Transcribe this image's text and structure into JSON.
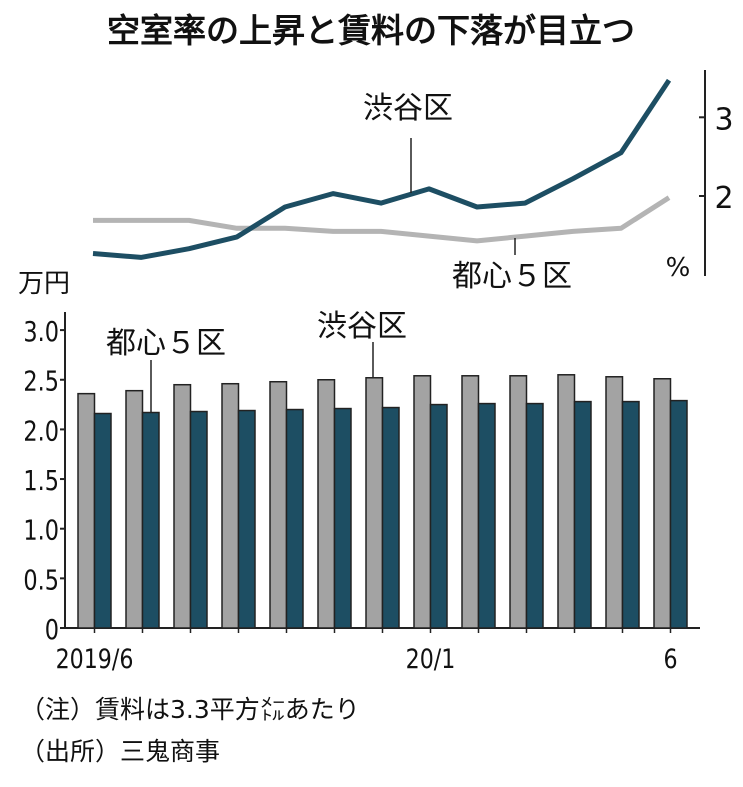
{
  "chart_data": [
    {
      "type": "line",
      "title": "空室率の上昇と賃料の下落が目立つ",
      "unit_label": "%",
      "yticks": [
        "2",
        "3"
      ],
      "ylim": [
        1.0,
        3.6
      ],
      "series": [
        {
          "name": "渋谷区",
          "color": "#1d4e63",
          "values": [
            1.27,
            1.22,
            1.33,
            1.48,
            1.86,
            2.03,
            1.91,
            2.09,
            1.86,
            1.91,
            2.22,
            2.55,
            3.47
          ]
        },
        {
          "name": "都心５区",
          "color": "#b4b4b4",
          "values": [
            1.69,
            1.69,
            1.69,
            1.59,
            1.59,
            1.55,
            1.55,
            1.49,
            1.43,
            1.49,
            1.55,
            1.59,
            1.98
          ]
        }
      ]
    },
    {
      "type": "bar",
      "unit_label": "万円",
      "yticks": [
        "0",
        "0.5",
        "1.0",
        "1.5",
        "2.0",
        "2.5",
        "3.0"
      ],
      "ylim": [
        0,
        3.0
      ],
      "categories": [
        "2019/6",
        "",
        "",
        "",
        "",
        "",
        "",
        "20/1",
        "",
        "",
        "",
        "",
        "6"
      ],
      "series": [
        {
          "name": "渋谷区",
          "color": "#a3a3a3",
          "values": [
            2.36,
            2.39,
            2.45,
            2.46,
            2.48,
            2.5,
            2.52,
            2.54,
            2.54,
            2.54,
            2.55,
            2.53,
            2.51
          ]
        },
        {
          "name": "都心５区",
          "color": "#1d4e63",
          "values": [
            2.16,
            2.17,
            2.18,
            2.19,
            2.2,
            2.21,
            2.22,
            2.25,
            2.26,
            2.26,
            2.28,
            2.28,
            2.29
          ]
        }
      ]
    }
  ],
  "notes": [
    "（注）賃料は3.3平方㍍あたり",
    "（出所）三鬼商事"
  ]
}
